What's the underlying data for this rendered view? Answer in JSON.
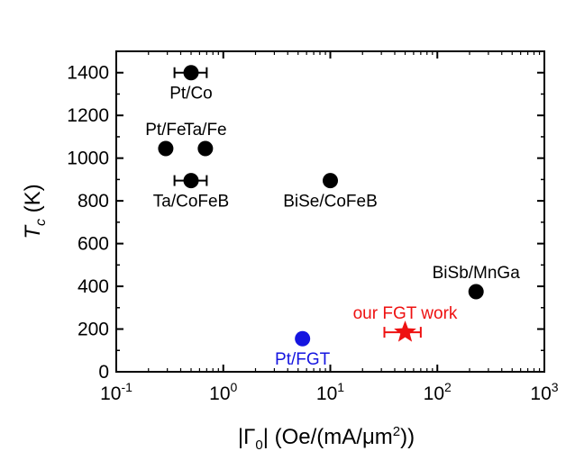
{
  "chart_data": {
    "type": "scatter",
    "xscale": "log",
    "xlim": [
      0.1,
      1000
    ],
    "ylim": [
      0,
      1500
    ],
    "xticks": [
      {
        "value": 0.1,
        "base": "10",
        "exp": "-1"
      },
      {
        "value": 1,
        "base": "10",
        "exp": "0"
      },
      {
        "value": 10,
        "base": "10",
        "exp": "1"
      },
      {
        "value": 100,
        "base": "10",
        "exp": "2"
      },
      {
        "value": 1000,
        "base": "10",
        "exp": "3"
      }
    ],
    "yticks": [
      0,
      200,
      400,
      600,
      800,
      1000,
      1200,
      1400
    ],
    "ylabel": {
      "main": "T",
      "sub": "c",
      "unit": "(K)"
    },
    "xlabel": {
      "prefix": "|Γ",
      "sub": "0",
      "mid": "| (Oe/(mA/μm",
      "sup": "2",
      "suffix": "))"
    },
    "points": [
      {
        "label": "Pt/Co",
        "x": 0.5,
        "y": 1400,
        "xerr": [
          0.35,
          0.7
        ],
        "color": "#000000",
        "marker": "circle",
        "label_pos": "below"
      },
      {
        "label": "Pt/Fe",
        "x": 0.29,
        "y": 1045,
        "color": "#000000",
        "marker": "circle",
        "label_pos": "above"
      },
      {
        "label": "Ta/Fe",
        "x": 0.68,
        "y": 1045,
        "color": "#000000",
        "marker": "circle",
        "label_pos": "above"
      },
      {
        "label": "Ta/CoFeB",
        "x": 0.5,
        "y": 895,
        "xerr": [
          0.35,
          0.7
        ],
        "color": "#000000",
        "marker": "circle",
        "label_pos": "below"
      },
      {
        "label": "BiSe/CoFeB",
        "x": 10,
        "y": 895,
        "color": "#000000",
        "marker": "circle",
        "label_pos": "below"
      },
      {
        "label": "BiSb/MnGa",
        "x": 230,
        "y": 375,
        "color": "#000000",
        "marker": "circle",
        "label_pos": "above"
      },
      {
        "label": "Pt/FGT",
        "x": 5.5,
        "y": 155,
        "color": "#1515e0",
        "marker": "circle",
        "label_pos": "below"
      },
      {
        "label": "our FGT work",
        "x": 50,
        "y": 185,
        "xerr": [
          32,
          70
        ],
        "color": "#ee1111",
        "marker": "star",
        "label_pos": "above"
      }
    ]
  }
}
